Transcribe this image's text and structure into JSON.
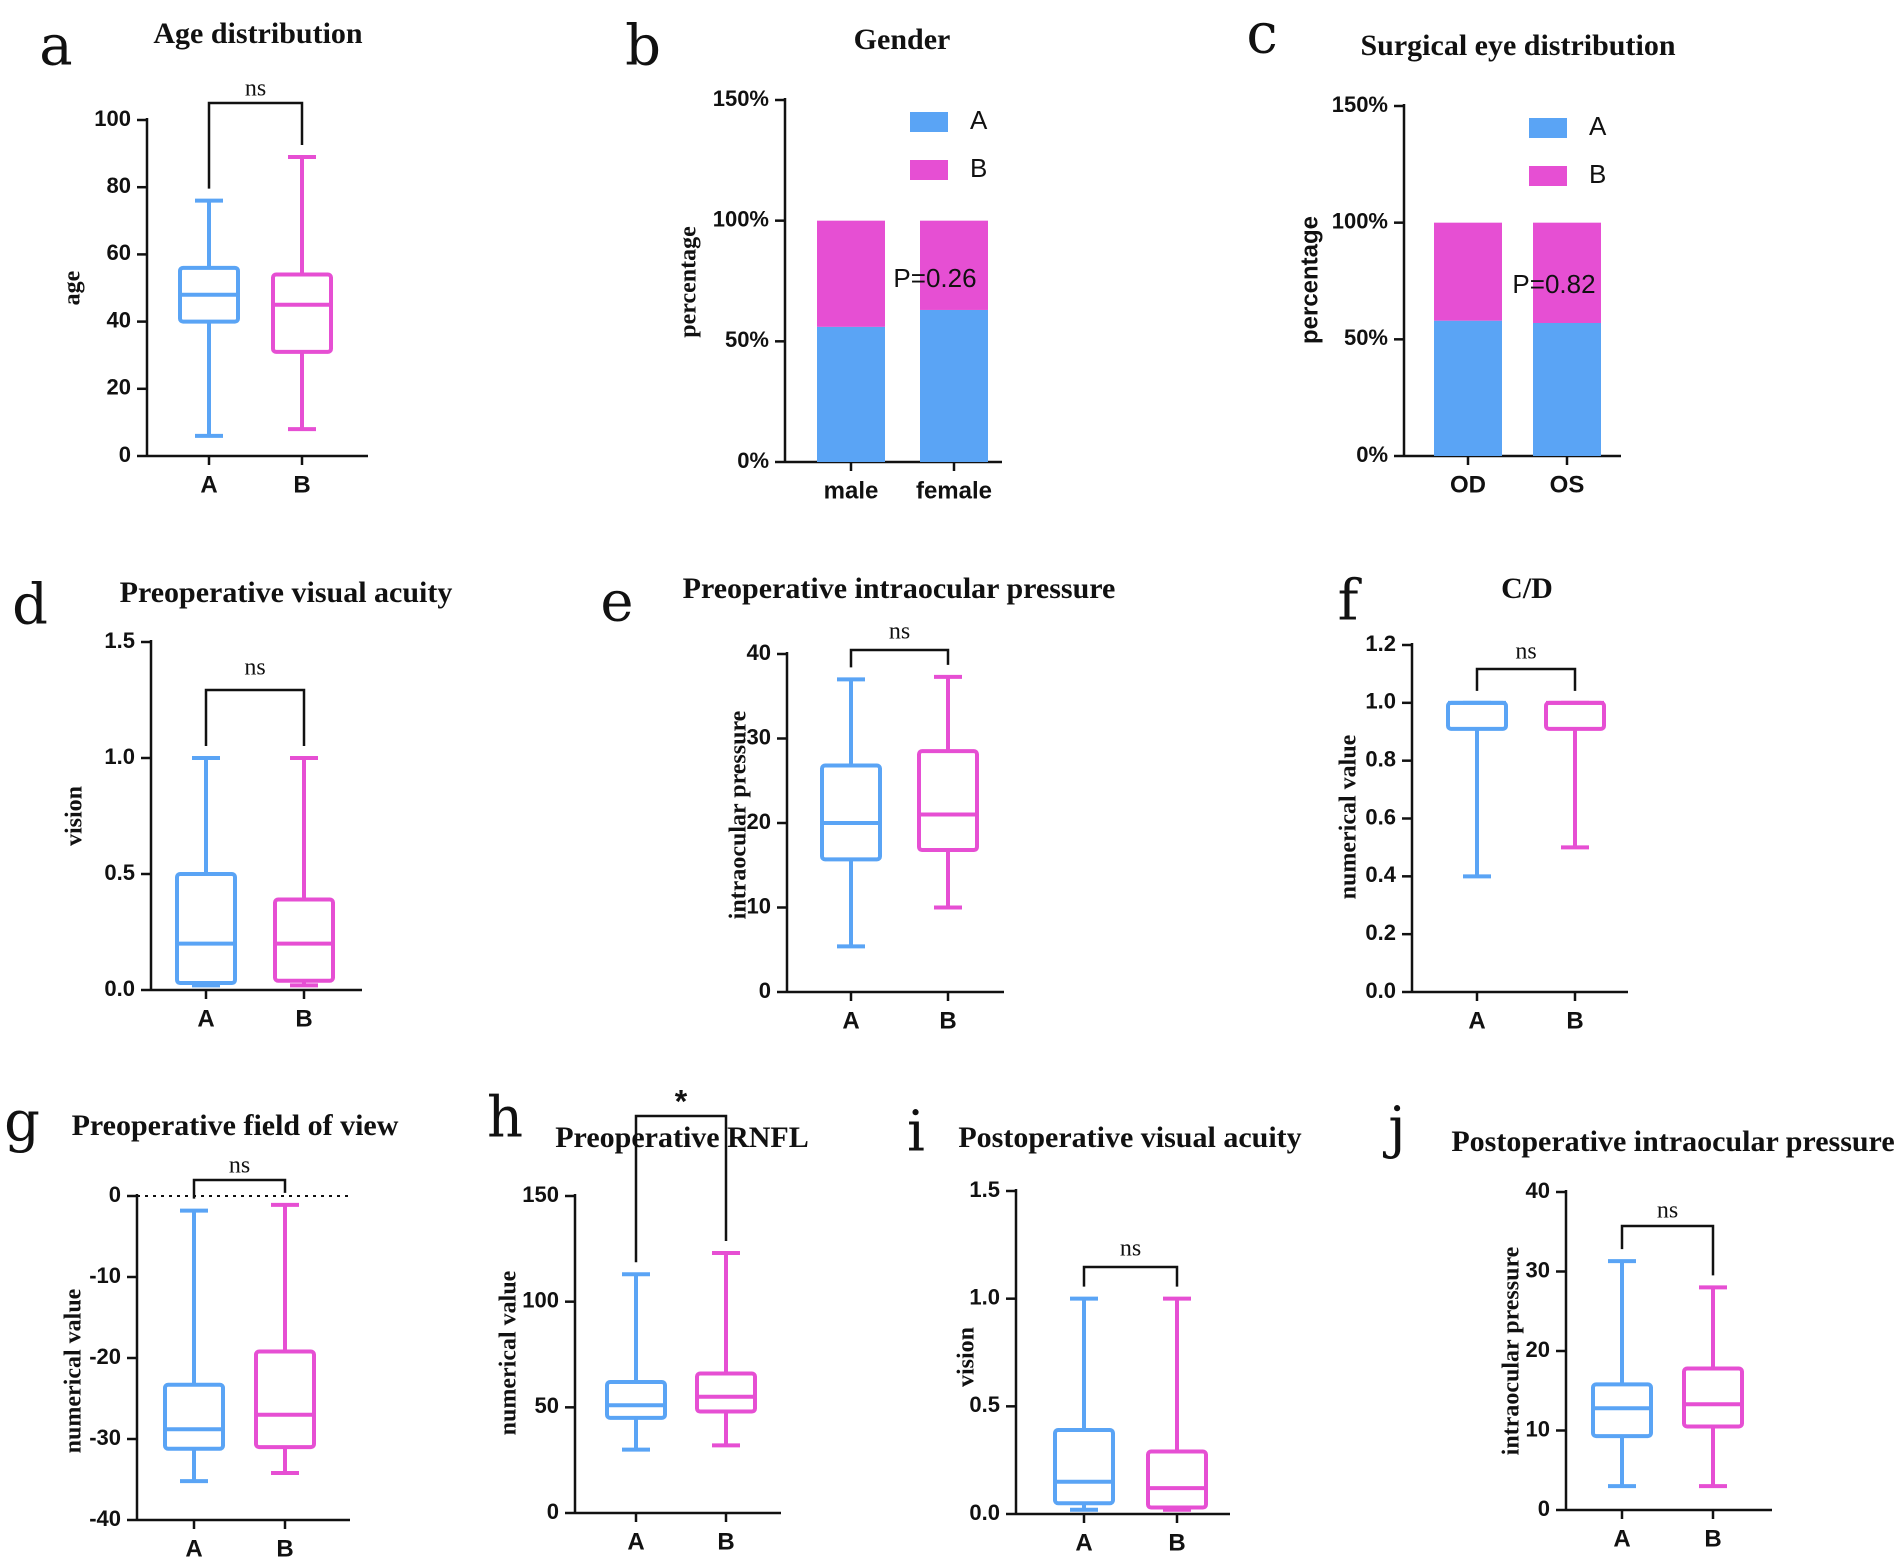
{
  "colors": {
    "A": "#5aa4f5",
    "B": "#e64fd3",
    "axis": "#111111"
  },
  "chart_data": [
    {
      "panel": "a",
      "type": "box",
      "title": "Age distribution",
      "ylabel": "age",
      "ylim": [
        0,
        100
      ],
      "yticks": [
        0,
        20,
        40,
        60,
        80,
        100
      ],
      "ytick_labels": [
        "0",
        "20",
        "40",
        "60",
        "80",
        "100"
      ],
      "categories": [
        "A",
        "B"
      ],
      "boxes": [
        {
          "group": "A",
          "min": 6,
          "q1": 40,
          "median": 48,
          "q3": 56,
          "max": 76
        },
        {
          "group": "B",
          "min": 8,
          "q1": 31,
          "median": 45,
          "q3": 54,
          "max": 89
        }
      ],
      "significance": "ns"
    },
    {
      "panel": "b",
      "type": "stacked-bar",
      "title": "Gender",
      "ylabel": "percentage",
      "ylim": [
        0,
        150
      ],
      "yticks": [
        0,
        50,
        100,
        150
      ],
      "ytick_labels": [
        "0%",
        "50%",
        "100%",
        "150%"
      ],
      "categories": [
        "male",
        "female"
      ],
      "series": [
        {
          "name": "A",
          "values": [
            56,
            63
          ]
        },
        {
          "name": "B",
          "values": [
            44,
            37
          ]
        }
      ],
      "legend": [
        "A",
        "B"
      ],
      "annotation": "P=0.26"
    },
    {
      "panel": "c",
      "type": "stacked-bar",
      "title": "Surgical eye distribution",
      "ylabel": "percentage",
      "ylim": [
        0,
        150
      ],
      "yticks": [
        0,
        50,
        100,
        150
      ],
      "ytick_labels": [
        "0%",
        "50%",
        "100%",
        "150%"
      ],
      "categories": [
        "OD",
        "OS"
      ],
      "series": [
        {
          "name": "A",
          "values": [
            58,
            57
          ]
        },
        {
          "name": "B",
          "values": [
            42,
            43
          ]
        }
      ],
      "legend": [
        "A",
        "B"
      ],
      "annotation": "P=0.82"
    },
    {
      "panel": "d",
      "type": "box",
      "title": "Preoperative visual acuity",
      "ylabel": "vision",
      "ylim": [
        0,
        1.5
      ],
      "yticks": [
        0,
        0.5,
        1,
        1.5
      ],
      "ytick_labels": [
        "0.0",
        "0.5",
        "1.0",
        "1.5"
      ],
      "categories": [
        "A",
        "B"
      ],
      "boxes": [
        {
          "group": "A",
          "min": 0.02,
          "q1": 0.03,
          "median": 0.2,
          "q3": 0.5,
          "max": 1.0
        },
        {
          "group": "B",
          "min": 0.02,
          "q1": 0.04,
          "median": 0.2,
          "q3": 0.39,
          "max": 1.0
        }
      ],
      "significance": "ns"
    },
    {
      "panel": "e",
      "type": "box",
      "title": "Preoperative intraocular pressure",
      "ylabel": "intraocular pressure",
      "ylim": [
        0,
        40
      ],
      "yticks": [
        0,
        10,
        20,
        30,
        40
      ],
      "ytick_labels": [
        "0",
        "10",
        "20",
        "30",
        "40"
      ],
      "categories": [
        "A",
        "B"
      ],
      "boxes": [
        {
          "group": "A",
          "min": 5.4,
          "q1": 15.7,
          "median": 20,
          "q3": 26.8,
          "max": 37
        },
        {
          "group": "B",
          "min": 10,
          "q1": 16.8,
          "median": 21,
          "q3": 28.5,
          "max": 37.3
        }
      ],
      "significance": "ns"
    },
    {
      "panel": "f",
      "type": "box",
      "title": "C/D",
      "ylabel": "numerical value",
      "ylim": [
        0,
        1.2
      ],
      "yticks": [
        0,
        0.2,
        0.4,
        0.6,
        0.8,
        1.0,
        1.2
      ],
      "ytick_labels": [
        "0.0",
        "0.2",
        "0.4",
        "0.6",
        "0.8",
        "1.0",
        "1.2"
      ],
      "categories": [
        "A",
        "B"
      ],
      "boxes": [
        {
          "group": "A",
          "min": 0.4,
          "q1": 0.91,
          "median": 1.0,
          "q3": 1.0,
          "max": 1.0
        },
        {
          "group": "B",
          "min": 0.5,
          "q1": 0.91,
          "median": 1.0,
          "q3": 1.0,
          "max": 1.0
        }
      ],
      "significance": "ns"
    },
    {
      "panel": "g",
      "type": "box",
      "title": "Preoperative field of view",
      "ylabel": "numerical value",
      "ylim": [
        -40,
        0
      ],
      "yticks": [
        -40,
        -30,
        -20,
        -10,
        0
      ],
      "ytick_labels": [
        "-40",
        "-30",
        "-20",
        "-10",
        "0"
      ],
      "reference_line": 0,
      "categories": [
        "A",
        "B"
      ],
      "boxes": [
        {
          "group": "A",
          "min": -35.2,
          "q1": -31.2,
          "median": -28.8,
          "q3": -23.3,
          "max": -1.8
        },
        {
          "group": "B",
          "min": -34.2,
          "q1": -31.0,
          "median": -27.0,
          "q3": -19.2,
          "max": -1.1
        }
      ],
      "significance": "ns"
    },
    {
      "panel": "h",
      "type": "box",
      "title": "Preoperative RNFL",
      "ylabel": "numerical value",
      "ylim": [
        0,
        150
      ],
      "yticks": [
        0,
        50,
        100,
        150
      ],
      "ytick_labels": [
        "0",
        "50",
        "100",
        "150"
      ],
      "categories": [
        "A",
        "B"
      ],
      "boxes": [
        {
          "group": "A",
          "min": 30,
          "q1": 45,
          "median": 51,
          "q3": 62,
          "max": 113
        },
        {
          "group": "B",
          "min": 32,
          "q1": 48,
          "median": 55,
          "q3": 66,
          "max": 123
        }
      ],
      "significance": "*"
    },
    {
      "panel": "i",
      "type": "box",
      "title": "Postoperative visual acuity",
      "ylabel": "vision",
      "ylim": [
        0,
        1.5
      ],
      "yticks": [
        0,
        0.5,
        1,
        1.5
      ],
      "ytick_labels": [
        "0.0",
        "0.5",
        "1.0",
        "1.5"
      ],
      "categories": [
        "A",
        "B"
      ],
      "boxes": [
        {
          "group": "A",
          "min": 0.02,
          "q1": 0.05,
          "median": 0.15,
          "q3": 0.39,
          "max": 1.0
        },
        {
          "group": "B",
          "min": 0.02,
          "q1": 0.03,
          "median": 0.12,
          "q3": 0.29,
          "max": 1.0
        }
      ],
      "significance": "ns"
    },
    {
      "panel": "j",
      "type": "box",
      "title": "Postoperative intraocular pressure",
      "ylabel": "intraocular pressure",
      "ylim": [
        0,
        40
      ],
      "yticks": [
        0,
        10,
        20,
        30,
        40
      ],
      "ytick_labels": [
        "0",
        "10",
        "20",
        "30",
        "40"
      ],
      "categories": [
        "A",
        "B"
      ],
      "boxes": [
        {
          "group": "A",
          "min": 3,
          "q1": 9.3,
          "median": 12.8,
          "q3": 15.8,
          "max": 31.3
        },
        {
          "group": "B",
          "min": 3,
          "q1": 10.5,
          "median": 13.3,
          "q3": 17.8,
          "max": 28
        }
      ],
      "significance": "ns"
    }
  ]
}
